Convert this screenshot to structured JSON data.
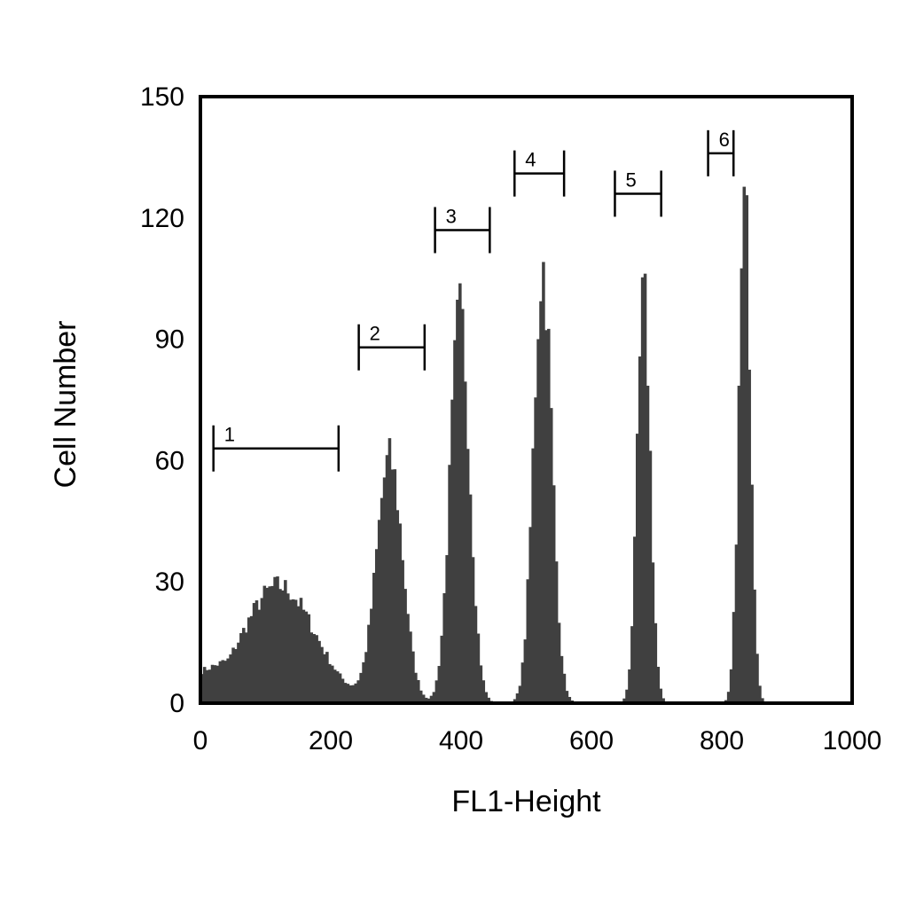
{
  "chart_data": {
    "type": "bar",
    "xlabel": "FL1-Height",
    "ylabel": "Cell Number",
    "xlim": [
      0,
      1000
    ],
    "ylim": [
      0,
      150
    ],
    "xticks": [
      "0",
      "200",
      "400",
      "600",
      "800",
      "1000"
    ],
    "yticks": [
      "0",
      "30",
      "60",
      "90",
      "120",
      "150"
    ],
    "grid": false,
    "fill_color": "#404040",
    "peaks": [
      {
        "center": 120,
        "height": 29,
        "sigma": 55
      },
      {
        "center": 290,
        "height": 60,
        "sigma": 20
      },
      {
        "center": 398,
        "height": 96,
        "sigma": 15
      },
      {
        "center": 525,
        "height": 108,
        "sigma": 14
      },
      {
        "center": 680,
        "height": 100,
        "sigma": 10
      },
      {
        "center": 835,
        "height": 123,
        "sigma": 9
      }
    ],
    "gates": [
      {
        "label": "1",
        "x1": 20,
        "x2": 212,
        "y": 63
      },
      {
        "label": "2",
        "x1": 243,
        "x2": 344,
        "y": 88
      },
      {
        "label": "3",
        "x1": 360,
        "x2": 444,
        "y": 117
      },
      {
        "label": "4",
        "x1": 482,
        "x2": 558,
        "y": 131
      },
      {
        "label": "5",
        "x1": 636,
        "x2": 707,
        "y": 126
      },
      {
        "label": "6",
        "x1": 779,
        "x2": 818,
        "y": 136
      }
    ]
  }
}
